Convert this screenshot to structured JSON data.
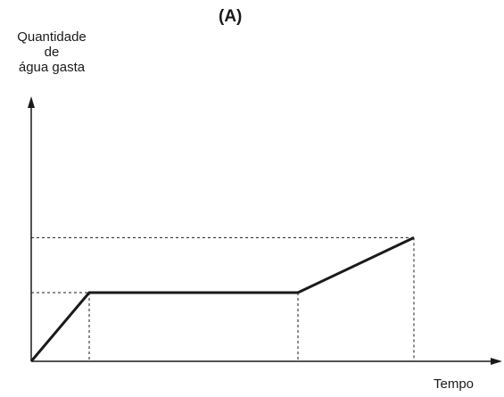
{
  "chart_data": {
    "type": "line",
    "title": "(A)",
    "ylabel_lines": [
      "Quantidade",
      "de",
      "água gasta"
    ],
    "xlabel": "Tempo",
    "grid": false,
    "legend": "none",
    "axis_ticks": "none",
    "series": [
      {
        "x": [
          0,
          1,
          4.6,
          6.6
        ],
        "y": [
          0,
          1,
          1,
          1.8
        ]
      }
    ],
    "reference_lines": "dashed guides from each breakpoint to both axes",
    "colors": {
      "line": "#1a1a1a",
      "dashed": "#1a1a1a"
    }
  }
}
